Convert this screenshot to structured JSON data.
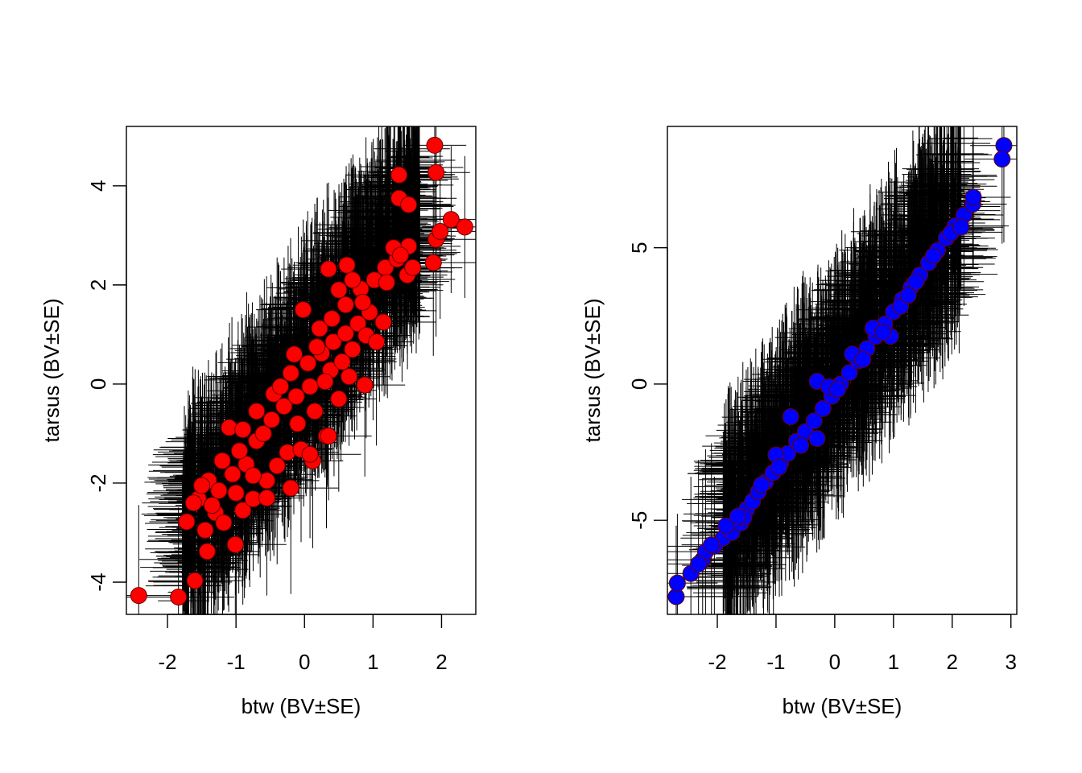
{
  "chart_data": [
    {
      "type": "scatter",
      "title": "",
      "xlabel": "btw (BV±SE)",
      "ylabel": "tarsus (BV±SE)",
      "xlim": [
        -2.6,
        2.5
      ],
      "ylim": [
        -4.65,
        5.2
      ],
      "xticks": [
        -2,
        -1,
        0,
        1,
        2
      ],
      "yticks": [
        -4,
        -2,
        0,
        2,
        4
      ],
      "xtick_labels": [
        "-2",
        "-1",
        "0",
        "1",
        "2"
      ],
      "ytick_labels": [
        "-4",
        "-2",
        "0",
        "2",
        "4"
      ],
      "point_color": "#ff0000",
      "error_bar_color": "#000000",
      "grid": false,
      "points": [
        [
          -2.42,
          -4.27
        ],
        [
          -1.84,
          -4.3
        ],
        [
          -1.6,
          -3.97
        ],
        [
          -1.42,
          -3.38
        ],
        [
          -1.01,
          -3.24
        ],
        [
          -1.72,
          -2.78
        ],
        [
          -1.45,
          -2.95
        ],
        [
          -1.3,
          -2.6
        ],
        [
          -1.55,
          -2.32
        ],
        [
          -1.62,
          -2.4
        ],
        [
          -1.18,
          -2.8
        ],
        [
          -0.9,
          -2.55
        ],
        [
          -0.75,
          -2.32
        ],
        [
          -1.4,
          -1.95
        ],
        [
          -1.25,
          -2.15
        ],
        [
          -1.05,
          -1.82
        ],
        [
          -0.85,
          -1.62
        ],
        [
          -1.2,
          -1.55
        ],
        [
          -0.95,
          -1.35
        ],
        [
          -0.7,
          -1.15
        ],
        [
          -0.55,
          -1.95
        ],
        [
          -0.4,
          -1.65
        ],
        [
          -0.25,
          -1.38
        ],
        [
          -0.05,
          -1.32
        ],
        [
          0.12,
          -1.55
        ],
        [
          0.32,
          -1.05
        ],
        [
          -0.7,
          -0.55
        ],
        [
          -0.48,
          -0.72
        ],
        [
          -0.3,
          -0.45
        ],
        [
          -0.12,
          -0.25
        ],
        [
          0.08,
          -0.05
        ],
        [
          -0.45,
          -0.2
        ],
        [
          -0.2,
          0.22
        ],
        [
          0.05,
          0.42
        ],
        [
          0.25,
          0.62
        ],
        [
          0.42,
          0.85
        ],
        [
          0.6,
          1.02
        ],
        [
          0.78,
          1.22
        ],
        [
          0.95,
          1.45
        ],
        [
          0.38,
          0.28
        ],
        [
          0.55,
          0.45
        ],
        [
          0.7,
          0.7
        ],
        [
          0.9,
          0.98
        ],
        [
          0.22,
          1.12
        ],
        [
          -0.02,
          1.5
        ],
        [
          0.4,
          1.32
        ],
        [
          0.6,
          1.6
        ],
        [
          0.82,
          1.92
        ],
        [
          1.02,
          2.1
        ],
        [
          1.18,
          2.35
        ],
        [
          0.35,
          2.32
        ],
        [
          0.62,
          2.4
        ],
        [
          0.7,
          2.1
        ],
        [
          1.35,
          2.52
        ],
        [
          1.52,
          2.78
        ],
        [
          1.3,
          2.75
        ],
        [
          1.5,
          2.2
        ],
        [
          1.58,
          2.35
        ],
        [
          1.88,
          2.45
        ],
        [
          1.92,
          2.92
        ],
        [
          1.98,
          3.08
        ],
        [
          2.14,
          3.32
        ],
        [
          2.34,
          3.17
        ],
        [
          1.38,
          3.75
        ],
        [
          1.52,
          3.62
        ],
        [
          1.38,
          4.22
        ],
        [
          1.9,
          4.82
        ],
        [
          1.92,
          4.27
        ],
        [
          0.88,
          -0.02
        ],
        [
          -0.02,
          1.5
        ],
        [
          -1.1,
          -0.88
        ],
        [
          -0.9,
          -0.92
        ],
        [
          0.35,
          -1.05
        ],
        [
          -0.2,
          -2.1
        ],
        [
          0.08,
          -1.42
        ],
        [
          -0.55,
          -2.3
        ],
        [
          -0.75,
          -1.85
        ],
        [
          -1.0,
          -2.2
        ],
        [
          -1.35,
          -2.45
        ],
        [
          -1.5,
          -2.05
        ],
        [
          -0.1,
          -0.8
        ],
        [
          0.15,
          -0.55
        ],
        [
          0.3,
          0.05
        ],
        [
          0.5,
          -0.3
        ],
        [
          0.65,
          0.15
        ],
        [
          1.05,
          0.85
        ],
        [
          1.15,
          1.25
        ],
        [
          0.18,
          0.75
        ],
        [
          -0.35,
          -0.05
        ],
        [
          -0.6,
          -1.0
        ],
        [
          0.85,
          1.65
        ],
        [
          1.2,
          2.05
        ],
        [
          1.4,
          2.6
        ],
        [
          0.5,
          1.9
        ],
        [
          -0.15,
          0.6
        ]
      ]
    },
    {
      "type": "scatter",
      "title": "",
      "xlabel": "btw (BV±SE)",
      "ylabel": "tarsus (BV±SE)",
      "xlim": [
        -2.85,
        3.1
      ],
      "ylim": [
        -8.45,
        9.45
      ],
      "xticks": [
        -2,
        -1,
        0,
        1,
        2,
        3
      ],
      "yticks": [
        -5,
        0,
        5
      ],
      "xtick_labels": [
        "-2",
        "-1",
        "0",
        "1",
        "2",
        "3"
      ],
      "ytick_labels": [
        "-5",
        "0",
        "5"
      ],
      "point_color": "#0000ff",
      "error_bar_color": "#000000",
      "grid": false,
      "points": [
        [
          -2.7,
          -7.8
        ],
        [
          -2.68,
          -7.3
        ],
        [
          -2.45,
          -6.95
        ],
        [
          -2.25,
          -6.45
        ],
        [
          -2.2,
          -6.15
        ],
        [
          -2.05,
          -5.95
        ],
        [
          -1.9,
          -5.65
        ],
        [
          -1.75,
          -5.45
        ],
        [
          -1.6,
          -5.1
        ],
        [
          -1.5,
          -4.6
        ],
        [
          -1.4,
          -4.3
        ],
        [
          -1.3,
          -3.95
        ],
        [
          -1.18,
          -3.6
        ],
        [
          -1.05,
          -3.25
        ],
        [
          -0.92,
          -2.9
        ],
        [
          -0.8,
          -2.55
        ],
        [
          -0.65,
          -2.1
        ],
        [
          -0.5,
          -1.75
        ],
        [
          -0.35,
          -1.35
        ],
        [
          -0.2,
          -0.9
        ],
        [
          -0.05,
          -0.45
        ],
        [
          0.1,
          0.0
        ],
        [
          0.25,
          0.42
        ],
        [
          0.4,
          0.85
        ],
        [
          0.55,
          1.3
        ],
        [
          0.7,
          1.75
        ],
        [
          0.85,
          2.2
        ],
        [
          1.0,
          2.65
        ],
        [
          1.15,
          3.1
        ],
        [
          1.3,
          3.55
        ],
        [
          1.45,
          4.0
        ],
        [
          1.6,
          4.45
        ],
        [
          1.75,
          4.9
        ],
        [
          1.9,
          5.35
        ],
        [
          2.05,
          5.8
        ],
        [
          2.2,
          6.2
        ],
        [
          2.35,
          6.6
        ],
        [
          2.36,
          6.85
        ],
        [
          2.88,
          8.75
        ],
        [
          2.85,
          8.25
        ],
        [
          -0.75,
          -1.2
        ],
        [
          -0.3,
          0.1
        ],
        [
          0.95,
          1.75
        ],
        [
          -0.3,
          -2.0
        ],
        [
          -1.0,
          -2.6
        ],
        [
          -1.55,
          -4.9
        ],
        [
          -2.1,
          -5.9
        ],
        [
          -0.1,
          -0.1
        ],
        [
          0.3,
          1.1
        ],
        [
          0.65,
          2.05
        ],
        [
          1.12,
          2.85
        ],
        [
          1.38,
          3.75
        ],
        [
          1.68,
          4.7
        ],
        [
          1.98,
          5.55
        ],
        [
          2.15,
          5.75
        ],
        [
          -1.85,
          -5.2
        ],
        [
          -1.25,
          -3.7
        ],
        [
          -0.58,
          -2.25
        ],
        [
          0.48,
          0.9
        ],
        [
          0.82,
          1.9
        ],
        [
          1.25,
          3.25
        ],
        [
          -2.32,
          -6.6
        ],
        [
          -1.65,
          -4.85
        ],
        [
          -0.95,
          -3.05
        ],
        [
          0.05,
          -0.2
        ]
      ]
    }
  ]
}
